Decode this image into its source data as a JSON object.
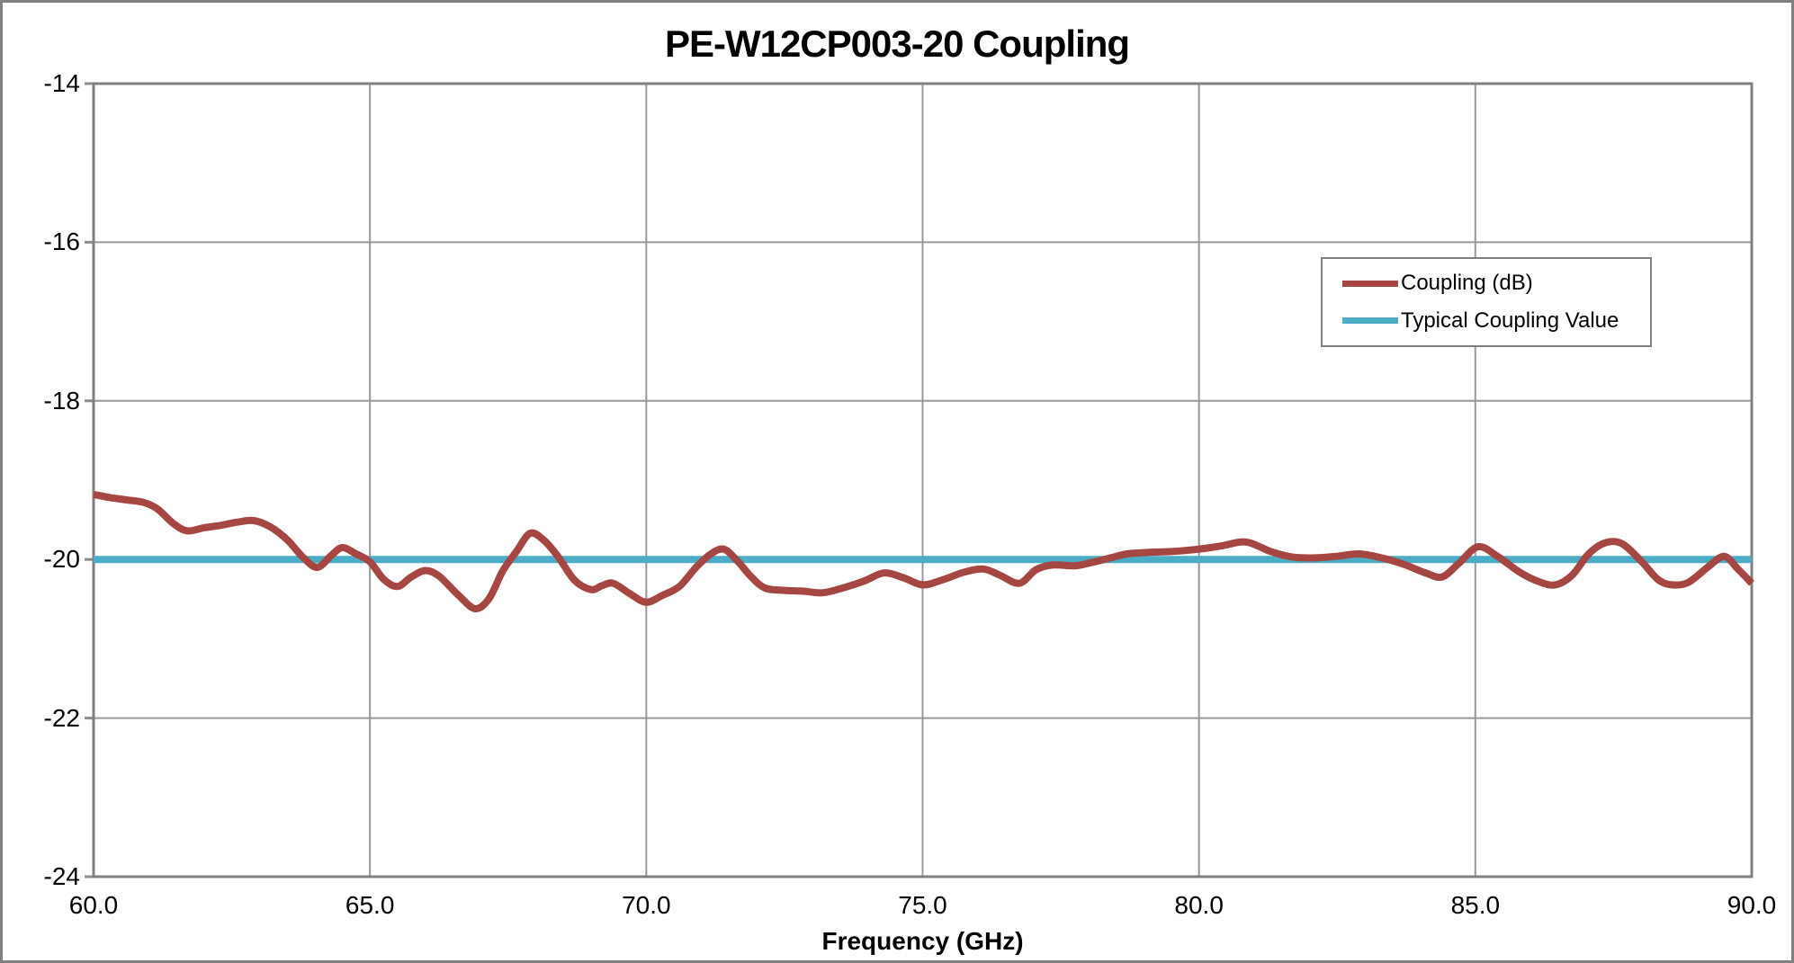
{
  "colors": {
    "background": "#FFFFFF",
    "plot_border": "#808080",
    "grid": "#989898",
    "tick": "#8C8C8C",
    "coupling_line": "#A54642",
    "typical_line": "#4BACC6",
    "text": "#000000",
    "legend_border": "#7F7F7F"
  },
  "chart_data": {
    "type": "line",
    "title": "PE-W12CP003-20 Coupling",
    "xlabel": "Frequency (GHz)",
    "ylabel": "",
    "xlim": [
      60,
      90
    ],
    "ylim": [
      -24,
      -14
    ],
    "grid": true,
    "legend_position": "upper-right-inside",
    "x_ticks": [
      60,
      65,
      70,
      75,
      80,
      85,
      90
    ],
    "x_tick_labels": [
      "60.0",
      "65.0",
      "70.0",
      "75.0",
      "80.0",
      "85.0",
      "90.0"
    ],
    "y_ticks": [
      -14,
      -16,
      -18,
      -20,
      -22,
      -24
    ],
    "y_tick_labels": [
      "-14",
      "-16",
      "-18",
      "-20",
      "-22",
      "-24"
    ],
    "series": [
      {
        "name": "Coupling (dB)",
        "color": "#A54642",
        "points": [
          [
            60.0,
            -19.18
          ],
          [
            60.3,
            -19.22
          ],
          [
            60.6,
            -19.25
          ],
          [
            60.9,
            -19.28
          ],
          [
            61.15,
            -19.36
          ],
          [
            61.45,
            -19.55
          ],
          [
            61.7,
            -19.64
          ],
          [
            62.0,
            -19.6
          ],
          [
            62.3,
            -19.57
          ],
          [
            62.6,
            -19.53
          ],
          [
            62.9,
            -19.51
          ],
          [
            63.2,
            -19.59
          ],
          [
            63.5,
            -19.75
          ],
          [
            63.8,
            -19.98
          ],
          [
            64.05,
            -20.1
          ],
          [
            64.3,
            -19.95
          ],
          [
            64.5,
            -19.85
          ],
          [
            64.75,
            -19.93
          ],
          [
            65.0,
            -20.03
          ],
          [
            65.25,
            -20.25
          ],
          [
            65.5,
            -20.34
          ],
          [
            65.75,
            -20.22
          ],
          [
            66.0,
            -20.14
          ],
          [
            66.25,
            -20.21
          ],
          [
            66.6,
            -20.45
          ],
          [
            66.9,
            -20.62
          ],
          [
            67.15,
            -20.5
          ],
          [
            67.4,
            -20.15
          ],
          [
            67.65,
            -19.9
          ],
          [
            67.9,
            -19.67
          ],
          [
            68.15,
            -19.76
          ],
          [
            68.4,
            -19.96
          ],
          [
            68.7,
            -20.26
          ],
          [
            69.0,
            -20.38
          ],
          [
            69.2,
            -20.33
          ],
          [
            69.4,
            -20.3
          ],
          [
            69.7,
            -20.43
          ],
          [
            70.0,
            -20.54
          ],
          [
            70.3,
            -20.45
          ],
          [
            70.6,
            -20.34
          ],
          [
            70.9,
            -20.1
          ],
          [
            71.15,
            -19.94
          ],
          [
            71.4,
            -19.87
          ],
          [
            71.65,
            -20.02
          ],
          [
            71.9,
            -20.22
          ],
          [
            72.15,
            -20.36
          ],
          [
            72.5,
            -20.39
          ],
          [
            72.85,
            -20.4
          ],
          [
            73.2,
            -20.42
          ],
          [
            73.6,
            -20.35
          ],
          [
            73.95,
            -20.27
          ],
          [
            74.3,
            -20.17
          ],
          [
            74.65,
            -20.23
          ],
          [
            75.0,
            -20.32
          ],
          [
            75.35,
            -20.26
          ],
          [
            75.75,
            -20.16
          ],
          [
            76.1,
            -20.12
          ],
          [
            76.4,
            -20.2
          ],
          [
            76.75,
            -20.3
          ],
          [
            77.05,
            -20.13
          ],
          [
            77.35,
            -20.07
          ],
          [
            77.75,
            -20.08
          ],
          [
            78.05,
            -20.04
          ],
          [
            78.4,
            -19.98
          ],
          [
            78.7,
            -19.93
          ],
          [
            79.1,
            -19.91
          ],
          [
            79.5,
            -19.9
          ],
          [
            80.0,
            -19.87
          ],
          [
            80.4,
            -19.83
          ],
          [
            80.85,
            -19.78
          ],
          [
            81.3,
            -19.9
          ],
          [
            81.7,
            -19.97
          ],
          [
            82.1,
            -19.98
          ],
          [
            82.5,
            -19.96
          ],
          [
            82.9,
            -19.93
          ],
          [
            83.3,
            -19.98
          ],
          [
            83.7,
            -20.06
          ],
          [
            84.1,
            -20.17
          ],
          [
            84.4,
            -20.22
          ],
          [
            84.7,
            -20.05
          ],
          [
            85.05,
            -19.84
          ],
          [
            85.4,
            -19.96
          ],
          [
            85.8,
            -20.16
          ],
          [
            86.15,
            -20.28
          ],
          [
            86.45,
            -20.32
          ],
          [
            86.75,
            -20.2
          ],
          [
            87.05,
            -19.93
          ],
          [
            87.35,
            -19.79
          ],
          [
            87.65,
            -19.8
          ],
          [
            88.0,
            -20.02
          ],
          [
            88.3,
            -20.25
          ],
          [
            88.55,
            -20.32
          ],
          [
            88.85,
            -20.29
          ],
          [
            89.2,
            -20.1
          ],
          [
            89.5,
            -19.96
          ],
          [
            89.75,
            -20.12
          ],
          [
            90.0,
            -20.3
          ]
        ]
      },
      {
        "name": "Typical Coupling Value",
        "color": "#4BACC6",
        "value": -20,
        "points": [
          [
            60,
            -20
          ],
          [
            90,
            -20
          ]
        ]
      }
    ]
  }
}
